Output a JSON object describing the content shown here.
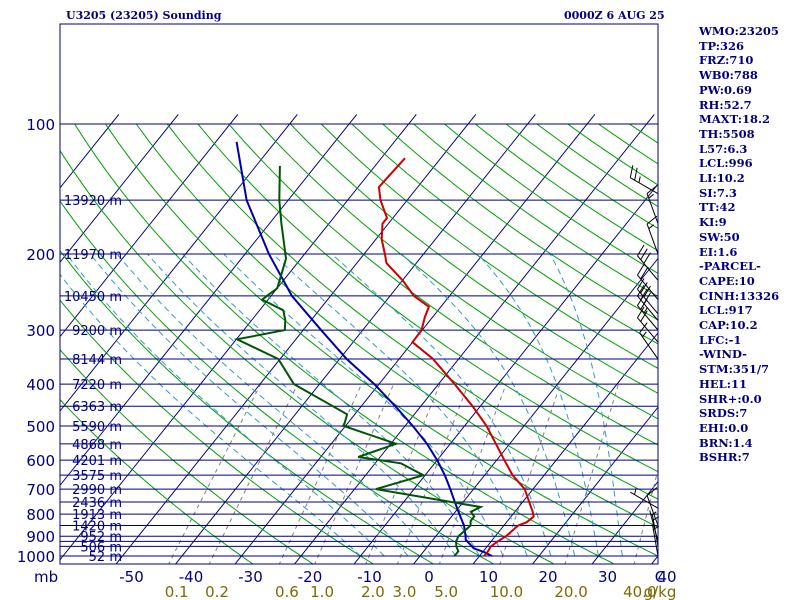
{
  "header": {
    "station": "U3205 (23205) Sounding",
    "valid": "0000Z  6 AUG 25"
  },
  "indices": [
    "WMO:23205",
    "TP:326",
    "FRZ:710",
    "WB0:788",
    "PW:0.69",
    "RH:52.7",
    "MAXT:18.2",
    "TH:5508",
    "L57:6.3",
    "LCL:996",
    "LI:10.2",
    "SI:7.3",
    "TT:42",
    "KI:9",
    "SW:50",
    "EI:1.6",
    "-PARCEL-",
    "CAPE:10",
    "CINH:13326",
    "LCL:917",
    "CAP:10.2",
    "LFC:-1",
    "-WIND-",
    "STM:351/7",
    "HEL:11",
    "SHR+:0.0",
    "SRDS:7",
    "EHI:0.0",
    "BRN:1.4",
    "BSHR:7"
  ],
  "colors": {
    "frame": "#00007f",
    "isobar": "#00007f",
    "isotherm": "#00007f",
    "dry_adiabat": "#00a000",
    "moist_adiabat": "#3399cc",
    "mixing_ratio": "#808080",
    "temperature": "#cc0000",
    "dewpoint": "#005500",
    "parcel": "#0000aa",
    "wind": "#000000",
    "mixing_label": "#7f6a00"
  },
  "chart_data": {
    "type": "skew-t",
    "pressure_ticks": [
      {
        "p": 100,
        "label": "100"
      },
      {
        "p": 200,
        "label": "200"
      },
      {
        "p": 300,
        "label": "300"
      },
      {
        "p": 400,
        "label": "400"
      },
      {
        "p": 500,
        "label": "500"
      },
      {
        "p": 600,
        "label": "600"
      },
      {
        "p": 700,
        "label": "700"
      },
      {
        "p": 800,
        "label": "800"
      },
      {
        "p": 900,
        "label": "900"
      },
      {
        "p": 1000,
        "label": "1000"
      }
    ],
    "isobars": [
      1000,
      950,
      925,
      900,
      850,
      800,
      750,
      700,
      650,
      600,
      550,
      500,
      450,
      400,
      350,
      300,
      250,
      200,
      150,
      100
    ],
    "height_labels": [
      {
        "p": 150,
        "label": "13920 m"
      },
      {
        "p": 200,
        "label": "11970 m"
      },
      {
        "p": 250,
        "label": "10450 m"
      },
      {
        "p": 300,
        "label": "9200 m"
      },
      {
        "p": 350,
        "label": "8144 m"
      },
      {
        "p": 400,
        "label": "7220 m"
      },
      {
        "p": 450,
        "label": "6363 m"
      },
      {
        "p": 500,
        "label": "5590 m"
      },
      {
        "p": 550,
        "label": "4868 m"
      },
      {
        "p": 600,
        "label": "4201 m"
      },
      {
        "p": 650,
        "label": "3575 m"
      },
      {
        "p": 700,
        "label": "2990 m"
      },
      {
        "p": 750,
        "label": "2436 m"
      },
      {
        "p": 800,
        "label": "1913 m"
      },
      {
        "p": 850,
        "label": "1420 m"
      },
      {
        "p": 900,
        "label": "952 m"
      },
      {
        "p": 950,
        "label": "506 m"
      },
      {
        "p": 1000,
        "label": "52 m"
      }
    ],
    "pressure_unit": "mb",
    "temperature_ticks": [
      -50,
      -40,
      -30,
      -20,
      -10,
      0,
      10,
      20,
      30,
      40
    ],
    "temperature_tick_labels": [
      "-50",
      "-40",
      "-30",
      "-20",
      "-10",
      "0",
      "10",
      "20",
      "30",
      "40"
    ],
    "temperature_unit": "C",
    "mixing_ratio_lines": [
      0.1,
      0.2,
      0.6,
      1.0,
      2.0,
      3.0,
      5.0,
      10.0,
      20.0,
      40.0
    ],
    "mixing_ratio_labels": [
      "0.1",
      "0.2",
      "0.6",
      "1.0",
      "2.0",
      "3.0",
      "5.0",
      "10.0",
      "20.0",
      "40.0"
    ],
    "mixing_ratio_unit": "g/kg",
    "temperature": [
      {
        "p": 1000,
        "t": 10.8
      },
      {
        "p": 975,
        "t": 10.8
      },
      {
        "p": 950,
        "t": 10.6
      },
      {
        "p": 925,
        "t": 11.1
      },
      {
        "p": 900,
        "t": 11.8
      },
      {
        "p": 850,
        "t": 12.4
      },
      {
        "p": 835,
        "t": 13.4
      },
      {
        "p": 810,
        "t": 13.8
      },
      {
        "p": 790,
        "t": 13.0
      },
      {
        "p": 700,
        "t": 8.6
      },
      {
        "p": 650,
        "t": 4.7
      },
      {
        "p": 600,
        "t": 1.3
      },
      {
        "p": 500,
        "t": -6.3
      },
      {
        "p": 450,
        "t": -11.3
      },
      {
        "p": 400,
        "t": -17.3
      },
      {
        "p": 350,
        "t": -24.3
      },
      {
        "p": 320,
        "t": -30.0
      },
      {
        "p": 300,
        "t": -30.1
      },
      {
        "p": 280,
        "t": -31.3
      },
      {
        "p": 265,
        "t": -32.0
      },
      {
        "p": 250,
        "t": -36.0
      },
      {
        "p": 230,
        "t": -40.0
      },
      {
        "p": 210,
        "t": -45.0
      },
      {
        "p": 200,
        "t": -46.5
      },
      {
        "p": 185,
        "t": -49.0
      },
      {
        "p": 170,
        "t": -51.0
      },
      {
        "p": 165,
        "t": -51.0
      },
      {
        "p": 150,
        "t": -54.5
      },
      {
        "p": 140,
        "t": -56.5
      },
      {
        "p": 120,
        "t": -56.0
      }
    ],
    "dewpoint": [
      {
        "p": 1000,
        "t": 5.8
      },
      {
        "p": 975,
        "t": 5.8
      },
      {
        "p": 950,
        "t": 4.8
      },
      {
        "p": 925,
        "t": 4.1
      },
      {
        "p": 900,
        "t": 3.8
      },
      {
        "p": 850,
        "t": 4.4
      },
      {
        "p": 830,
        "t": 3.8
      },
      {
        "p": 810,
        "t": 3.8
      },
      {
        "p": 790,
        "t": 2.6
      },
      {
        "p": 770,
        "t": 3.6
      },
      {
        "p": 700,
        "t": -16.4
      },
      {
        "p": 650,
        "t": -10.3
      },
      {
        "p": 610,
        "t": -15.7
      },
      {
        "p": 590,
        "t": -23.7
      },
      {
        "p": 550,
        "t": -19.1
      },
      {
        "p": 500,
        "t": -30.3
      },
      {
        "p": 470,
        "t": -31.3
      },
      {
        "p": 400,
        "t": -44.3
      },
      {
        "p": 350,
        "t": -50.3
      },
      {
        "p": 315,
        "t": -59.9
      },
      {
        "p": 300,
        "t": -53.1
      },
      {
        "p": 285,
        "t": -54.3
      },
      {
        "p": 270,
        "t": -56.0
      },
      {
        "p": 255,
        "t": -61.0
      },
      {
        "p": 240,
        "t": -60.0
      },
      {
        "p": 225,
        "t": -61.0
      },
      {
        "p": 205,
        "t": -62.5
      },
      {
        "p": 185,
        "t": -65.5
      },
      {
        "p": 170,
        "t": -68.0
      },
      {
        "p": 150,
        "t": -71.5
      },
      {
        "p": 125,
        "t": -76.0
      }
    ],
    "parcel": [
      {
        "p": 1000,
        "t": 12.1
      },
      {
        "p": 980,
        "t": 10.3
      },
      {
        "p": 960,
        "t": 8.0
      },
      {
        "p": 917,
        "t": 5.5
      },
      {
        "p": 900,
        "t": 5.0
      },
      {
        "p": 850,
        "t": 3.3
      },
      {
        "p": 800,
        "t": 1.0
      },
      {
        "p": 750,
        "t": -1.4
      },
      {
        "p": 700,
        "t": -3.9
      },
      {
        "p": 650,
        "t": -6.7
      },
      {
        "p": 600,
        "t": -10.0
      },
      {
        "p": 550,
        "t": -13.9
      },
      {
        "p": 500,
        "t": -18.7
      },
      {
        "p": 450,
        "t": -24.3
      },
      {
        "p": 400,
        "t": -30.8
      },
      {
        "p": 350,
        "t": -38.8
      },
      {
        "p": 300,
        "t": -47.0
      },
      {
        "p": 250,
        "t": -56.5
      },
      {
        "p": 200,
        "t": -66.0
      },
      {
        "p": 150,
        "t": -77.0
      },
      {
        "p": 110,
        "t": -86.5
      }
    ],
    "wind_barbs": [
      {
        "p": 1000,
        "dir": 350,
        "kt": 5
      },
      {
        "p": 950,
        "dir": 350,
        "kt": 5
      },
      {
        "p": 925,
        "dir": 345,
        "kt": 5
      },
      {
        "p": 850,
        "dir": 340,
        "kt": 10
      },
      {
        "p": 775,
        "dir": 300,
        "kt": 5
      },
      {
        "p": 350,
        "dir": 325,
        "kt": 15
      },
      {
        "p": 320,
        "dir": 320,
        "kt": 20
      },
      {
        "p": 300,
        "dir": 320,
        "kt": 25
      },
      {
        "p": 285,
        "dir": 320,
        "kt": 30
      },
      {
        "p": 275,
        "dir": 320,
        "kt": 30
      },
      {
        "p": 255,
        "dir": 320,
        "kt": 20
      },
      {
        "p": 230,
        "dir": 320,
        "kt": 30
      },
      {
        "p": 200,
        "dir": 340,
        "kt": 15
      },
      {
        "p": 170,
        "dir": 340,
        "kt": 15
      },
      {
        "p": 145,
        "dir": 300,
        "kt": 25
      }
    ]
  }
}
